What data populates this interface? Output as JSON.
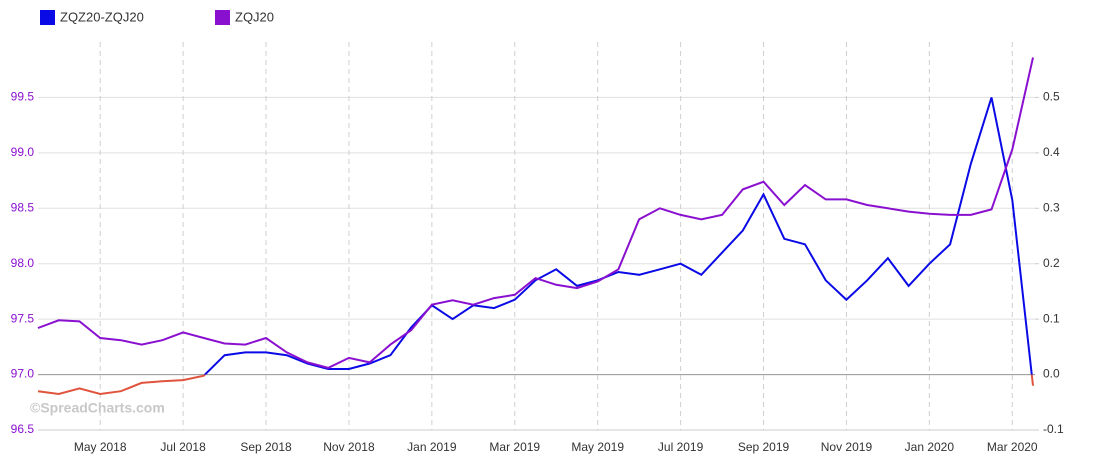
{
  "chart_data": {
    "type": "line",
    "watermark": "©SpreadCharts.com",
    "categories": [
      null,
      null,
      null,
      "May 2018",
      null,
      null,
      null,
      "Jul 2018",
      null,
      null,
      null,
      "Sep 2018",
      null,
      null,
      null,
      "Nov 2018",
      null,
      null,
      null,
      "Jan 2019",
      null,
      null,
      null,
      "Mar 2019",
      null,
      null,
      null,
      "May 2019",
      null,
      null,
      null,
      "Jul 2019",
      null,
      null,
      null,
      "Sep 2019",
      null,
      null,
      null,
      "Nov 2019",
      null,
      null,
      null,
      "Jan 2020",
      null,
      null,
      null,
      "Mar 2020",
      null
    ],
    "series": [
      {
        "name": "ZQZ20-ZQJ20",
        "color": "#0a0ae6",
        "negative_color": "#e0533d",
        "axis": "y2",
        "values": [
          -0.03,
          -0.035,
          -0.025,
          -0.035,
          -0.03,
          -0.015,
          -0.012,
          -0.01,
          -0.002,
          0.035,
          0.04,
          0.04,
          0.035,
          0.02,
          0.01,
          0.01,
          0.02,
          0.035,
          0.085,
          0.125,
          0.1,
          0.125,
          0.12,
          0.135,
          0.17,
          0.19,
          0.16,
          0.17,
          0.185,
          0.18,
          0.19,
          0.2,
          0.18,
          0.22,
          0.26,
          0.325,
          0.245,
          0.235,
          0.17,
          0.135,
          0.17,
          0.21,
          0.16,
          0.2,
          0.235,
          0.38,
          0.5,
          0.315,
          -0.02
        ]
      },
      {
        "name": "ZQJ20",
        "color": "#8a10d0",
        "values": [
          97.42,
          97.49,
          97.48,
          97.33,
          97.31,
          97.27,
          97.31,
          97.38,
          97.33,
          97.28,
          97.27,
          97.33,
          97.2,
          97.11,
          97.06,
          97.15,
          97.11,
          97.27,
          97.4,
          97.63,
          97.67,
          97.63,
          97.69,
          97.72,
          97.87,
          97.81,
          97.78,
          97.84,
          97.95,
          98.4,
          98.5,
          98.44,
          98.4,
          98.44,
          98.67,
          98.74,
          98.53,
          98.71,
          98.58,
          98.58,
          98.53,
          98.5,
          98.47,
          98.45,
          98.44,
          98.44,
          98.49,
          99.03,
          99.86
        ]
      }
    ],
    "ylim": [
      96.5,
      100.0
    ],
    "yticks": [
      96.5,
      97.0,
      97.5,
      98.0,
      98.5,
      99.0,
      99.5
    ],
    "y2lim": [
      -0.1,
      0.6
    ],
    "y2ticks": [
      -0.1,
      0.0,
      0.1,
      0.2,
      0.3,
      0.4,
      0.5
    ],
    "grid": true
  }
}
